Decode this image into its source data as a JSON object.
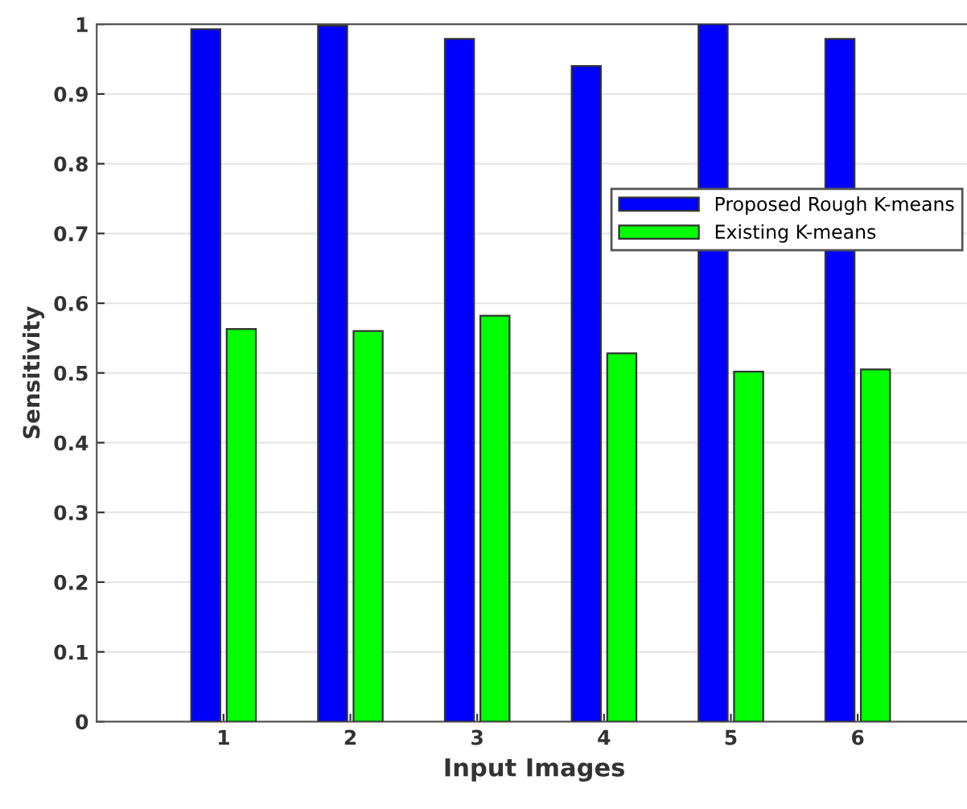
{
  "chart_data": {
    "type": "bar",
    "xlabel": "Input Images",
    "ylabel": "Sensitivity",
    "categories": [
      "1",
      "2",
      "3",
      "4",
      "5",
      "6"
    ],
    "series": [
      {
        "name": "Proposed Rough K-means",
        "color": "#0000ff",
        "values": [
          0.993,
          0.998,
          0.979,
          0.94,
          1.0,
          0.979
        ]
      },
      {
        "name": "Existing K-means",
        "color": "#00ff00",
        "values": [
          0.563,
          0.56,
          0.582,
          0.528,
          0.502,
          0.505
        ]
      }
    ],
    "ylim": [
      0,
      1
    ],
    "yticks": [
      0,
      0.1,
      0.2,
      0.3,
      0.4,
      0.5,
      0.6,
      0.7,
      0.8,
      0.9,
      1
    ],
    "grid": "y",
    "legend": "right"
  }
}
